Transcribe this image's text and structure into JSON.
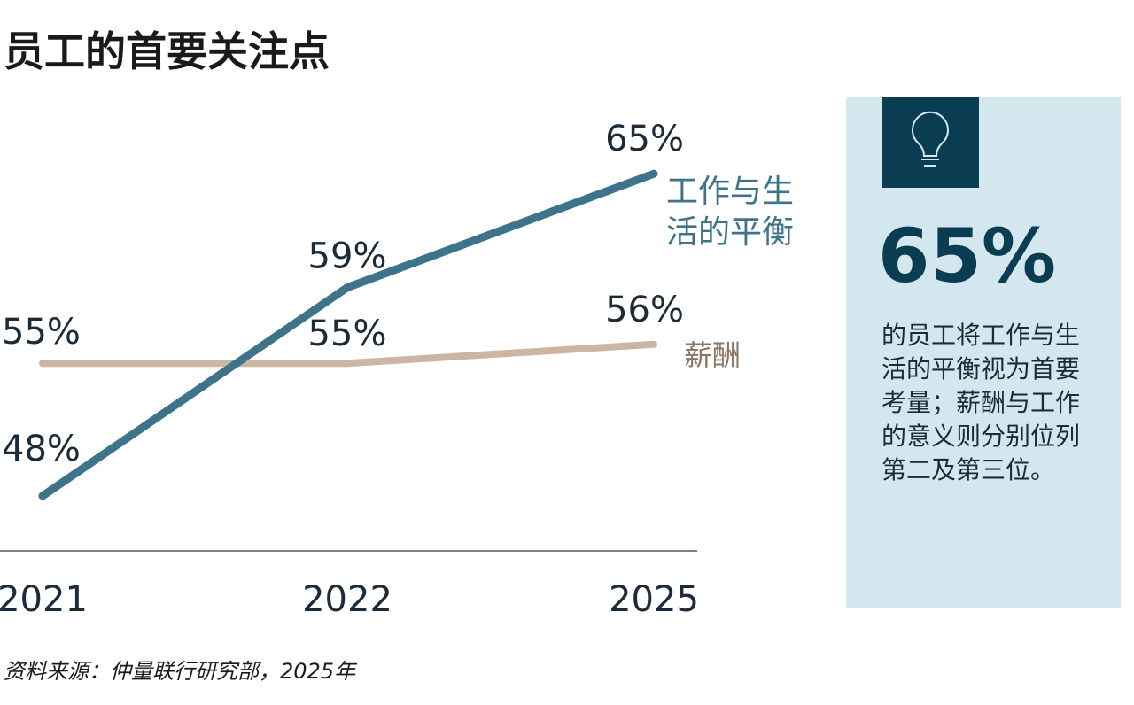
{
  "title": "员工的首要关注点",
  "chart_data": {
    "type": "line",
    "categories": [
      "2021",
      "2022",
      "2025"
    ],
    "series": [
      {
        "name": "工作与生活的平衡",
        "name_lines": [
          "工作与生",
          "活的平衡"
        ],
        "values": [
          48,
          59,
          65
        ],
        "labels": [
          "48%",
          "59%",
          "65%"
        ],
        "color": "#3d7489"
      },
      {
        "name": "薪酬",
        "name_lines": [
          "薪酬"
        ],
        "values": [
          55,
          55,
          56
        ],
        "labels": [
          "55%",
          "55%",
          "56%"
        ],
        "color": "#cdb5a4"
      }
    ],
    "grid": false
  },
  "panel": {
    "icon": "lightbulb-icon",
    "big_number": "65%",
    "description": "的员工将工作与生活的平衡视为首要考量；薪酬与工作的意义则分别位列第二及第三位。",
    "bg": "#d5e7ee",
    "accent": "#0b3d52"
  },
  "source": "资料来源：仲量联行研究部，2025年"
}
